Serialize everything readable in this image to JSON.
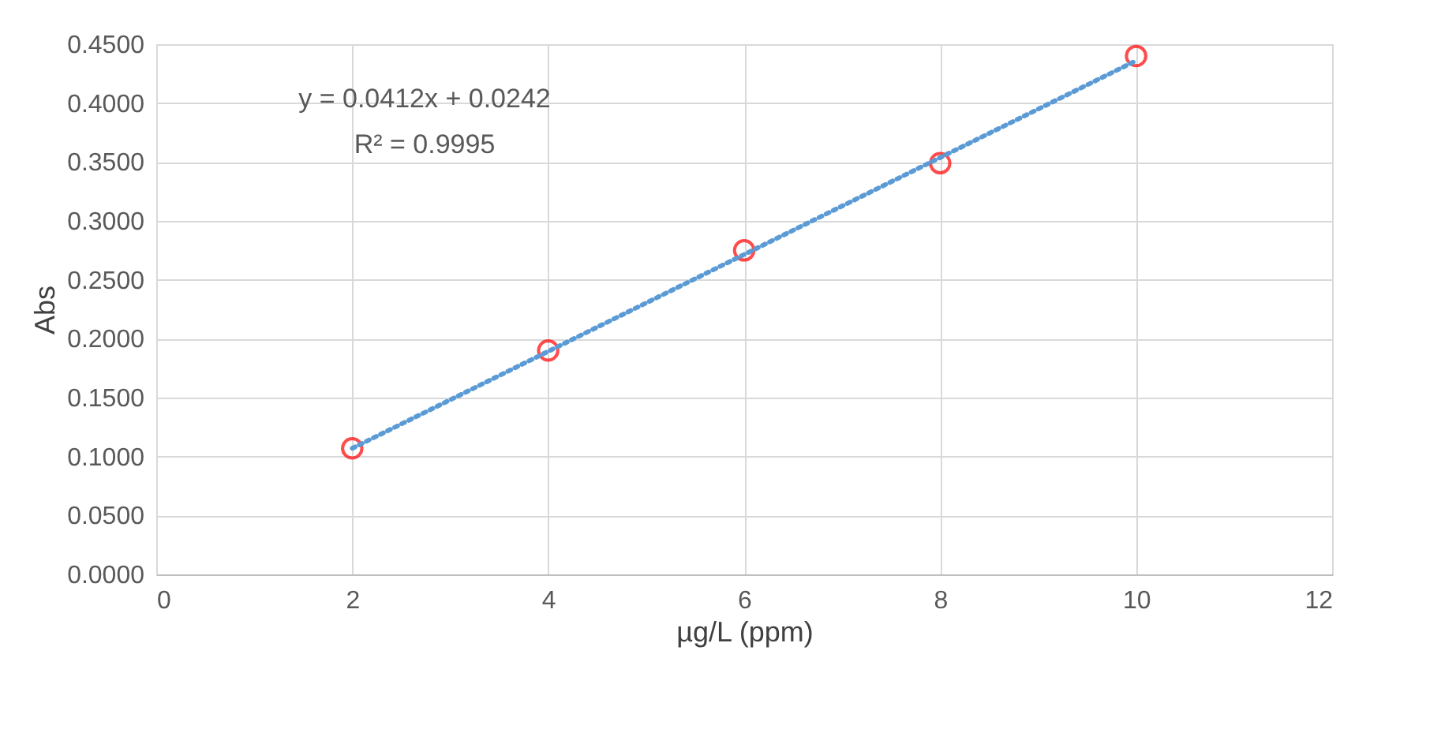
{
  "chart_data": {
    "type": "scatter",
    "xlabel": "µg/L (ppm)",
    "ylabel": "Abs",
    "annotations": [
      "y = 0.0412x + 0.0242",
      "R² = 0.9995"
    ],
    "series": [
      {
        "color": "#ff0000",
        "marker": "circle",
        "x": [
          2,
          4,
          6,
          8,
          10
        ],
        "values": [
          0.107,
          0.19,
          0.275,
          0.349,
          0.44
        ]
      },
      {
        "type": "line",
        "color": "#5b9bd5",
        "line_style": "dotted",
        "marker": "none",
        "x": [
          2,
          10
        ],
        "values": [
          0.107,
          0.436
        ]
      }
    ],
    "xlim": [
      0,
      12
    ],
    "xticks": [
      0,
      2,
      4,
      6,
      8,
      10,
      12
    ],
    "ylim": [
      0,
      0.45
    ],
    "yticks": [
      {
        "value": 0,
        "label": "0.0000"
      },
      {
        "value": 0.05,
        "label": "0.0500"
      },
      {
        "value": 0.1,
        "label": "0.1000"
      },
      {
        "value": 0.15,
        "label": "0.1500"
      },
      {
        "value": 0.2,
        "label": "0.2000"
      },
      {
        "value": 0.25,
        "label": "0.2500"
      },
      {
        "value": 0.3,
        "label": "0.3000"
      },
      {
        "value": 0.35,
        "label": "0.3500"
      },
      {
        "value": 0.4,
        "label": "0.4000"
      },
      {
        "value": 0.45,
        "label": "0.4500"
      }
    ],
    "grid": true
  }
}
